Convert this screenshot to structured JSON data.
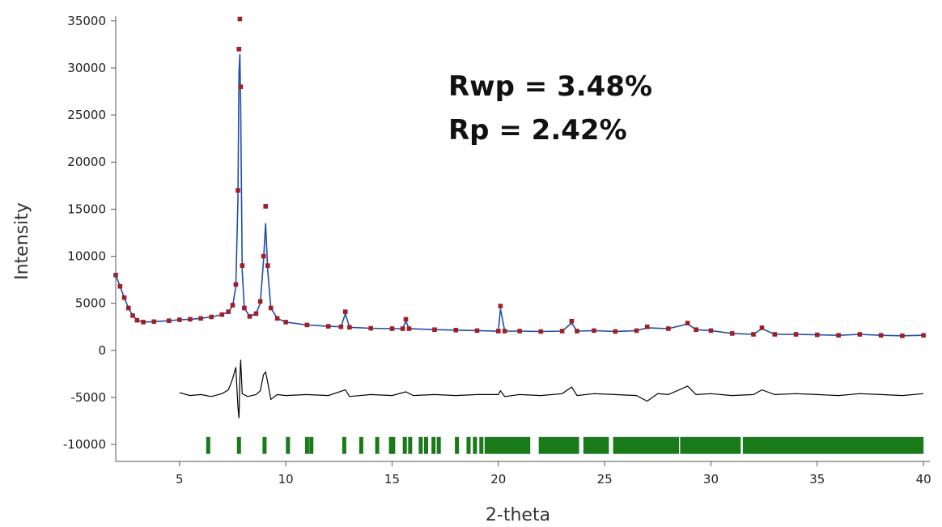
{
  "chart_data": {
    "type": "line",
    "title": "",
    "xlabel": "2-theta",
    "ylabel": "Intensity",
    "xlim": [
      2.0,
      40.3
    ],
    "ylim": [
      -11800,
      35500
    ],
    "grid": false,
    "legend": "none",
    "x_ticks": [
      5,
      10,
      15,
      20,
      25,
      30,
      35,
      40
    ],
    "y_ticks": [
      35000,
      30000,
      25000,
      20000,
      15000,
      10000,
      5000,
      0,
      -5000,
      -10000
    ],
    "x_tick_labels": [
      "5",
      "10",
      "15",
      "20",
      "25",
      "30",
      "35",
      "40"
    ],
    "y_tick_labels": [
      "35000",
      "30000",
      "25000",
      "20000",
      "15000",
      "10000",
      "5000",
      "0",
      "-5000",
      "-10000"
    ],
    "annotations": [
      "Rwp = 3.48%",
      "Rp = 2.42%"
    ],
    "colors": {
      "observed": "#a01e28",
      "calculated": "#1f4ea8",
      "difference": "#000000",
      "reflections": "#1a7a1a"
    },
    "observed": [
      [
        2.0,
        8000
      ],
      [
        2.2,
        6800
      ],
      [
        2.4,
        5600
      ],
      [
        2.6,
        4500
      ],
      [
        2.8,
        3700
      ],
      [
        3.0,
        3200
      ],
      [
        3.3,
        3000
      ],
      [
        3.8,
        3050
      ],
      [
        4.5,
        3150
      ],
      [
        5.0,
        3250
      ],
      [
        5.5,
        3300
      ],
      [
        6.0,
        3400
      ],
      [
        6.5,
        3550
      ],
      [
        7.0,
        3800
      ],
      [
        7.3,
        4100
      ],
      [
        7.5,
        4800
      ],
      [
        7.65,
        7000
      ],
      [
        7.75,
        17000
      ],
      [
        7.8,
        32000
      ],
      [
        7.84,
        35200
      ],
      [
        7.88,
        28000
      ],
      [
        7.95,
        9000
      ],
      [
        8.05,
        4500
      ],
      [
        8.3,
        3600
      ],
      [
        8.6,
        3900
      ],
      [
        8.8,
        5200
      ],
      [
        8.95,
        10000
      ],
      [
        9.05,
        15300
      ],
      [
        9.15,
        9000
      ],
      [
        9.3,
        4500
      ],
      [
        9.6,
        3400
      ],
      [
        10.0,
        3000
      ],
      [
        11.0,
        2700
      ],
      [
        12.0,
        2550
      ],
      [
        12.6,
        2500
      ],
      [
        12.8,
        4100
      ],
      [
        13.0,
        2450
      ],
      [
        14.0,
        2350
      ],
      [
        15.0,
        2300
      ],
      [
        15.5,
        2300
      ],
      [
        15.65,
        3300
      ],
      [
        15.8,
        2300
      ],
      [
        17.0,
        2200
      ],
      [
        18.0,
        2150
      ],
      [
        19.0,
        2100
      ],
      [
        20.0,
        2050
      ],
      [
        20.1,
        4700
      ],
      [
        20.3,
        2050
      ],
      [
        21.0,
        2050
      ],
      [
        22.0,
        2000
      ],
      [
        23.0,
        2050
      ],
      [
        23.45,
        3100
      ],
      [
        23.7,
        2050
      ],
      [
        24.5,
        2100
      ],
      [
        25.5,
        2000
      ],
      [
        26.5,
        2100
      ],
      [
        27.0,
        2500
      ],
      [
        28.0,
        2300
      ],
      [
        28.9,
        2900
      ],
      [
        29.3,
        2200
      ],
      [
        30.0,
        2100
      ],
      [
        31.0,
        1800
      ],
      [
        32.0,
        1700
      ],
      [
        32.4,
        2400
      ],
      [
        33.0,
        1700
      ],
      [
        34.0,
        1700
      ],
      [
        35.0,
        1650
      ],
      [
        36.0,
        1600
      ],
      [
        37.0,
        1700
      ],
      [
        38.0,
        1600
      ],
      [
        39.0,
        1550
      ],
      [
        40.0,
        1600
      ]
    ],
    "calculated": [
      [
        2.0,
        8000
      ],
      [
        2.2,
        6800
      ],
      [
        2.4,
        5600
      ],
      [
        2.6,
        4500
      ],
      [
        2.8,
        3700
      ],
      [
        3.0,
        3200
      ],
      [
        3.3,
        3000
      ],
      [
        3.8,
        3050
      ],
      [
        4.5,
        3150
      ],
      [
        5.0,
        3250
      ],
      [
        5.5,
        3300
      ],
      [
        6.0,
        3400
      ],
      [
        6.5,
        3550
      ],
      [
        7.0,
        3800
      ],
      [
        7.3,
        4100
      ],
      [
        7.5,
        4700
      ],
      [
        7.65,
        6800
      ],
      [
        7.75,
        16000
      ],
      [
        7.8,
        29500
      ],
      [
        7.84,
        31500
      ],
      [
        7.88,
        26000
      ],
      [
        7.95,
        8500
      ],
      [
        8.05,
        4500
      ],
      [
        8.3,
        3600
      ],
      [
        8.6,
        3900
      ],
      [
        8.8,
        5000
      ],
      [
        8.95,
        9500
      ],
      [
        9.05,
        13500
      ],
      [
        9.15,
        8500
      ],
      [
        9.3,
        4500
      ],
      [
        9.6,
        3400
      ],
      [
        10.0,
        3000
      ],
      [
        11.0,
        2700
      ],
      [
        12.0,
        2550
      ],
      [
        12.6,
        2500
      ],
      [
        12.8,
        3900
      ],
      [
        13.0,
        2450
      ],
      [
        14.0,
        2350
      ],
      [
        15.0,
        2300
      ],
      [
        15.5,
        2300
      ],
      [
        15.65,
        3100
      ],
      [
        15.8,
        2300
      ],
      [
        17.0,
        2200
      ],
      [
        18.0,
        2150
      ],
      [
        19.0,
        2100
      ],
      [
        20.0,
        2050
      ],
      [
        20.1,
        4400
      ],
      [
        20.3,
        2050
      ],
      [
        21.0,
        2050
      ],
      [
        22.0,
        2000
      ],
      [
        23.0,
        2050
      ],
      [
        23.45,
        2900
      ],
      [
        23.7,
        2050
      ],
      [
        24.5,
        2100
      ],
      [
        25.5,
        2000
      ],
      [
        26.5,
        2100
      ],
      [
        27.0,
        2400
      ],
      [
        28.0,
        2300
      ],
      [
        28.9,
        2800
      ],
      [
        29.3,
        2200
      ],
      [
        30.0,
        2100
      ],
      [
        31.0,
        1800
      ],
      [
        32.0,
        1700
      ],
      [
        32.4,
        2300
      ],
      [
        33.0,
        1700
      ],
      [
        34.0,
        1700
      ],
      [
        35.0,
        1650
      ],
      [
        36.0,
        1600
      ],
      [
        37.0,
        1700
      ],
      [
        38.0,
        1600
      ],
      [
        39.0,
        1550
      ],
      [
        40.0,
        1600
      ]
    ],
    "difference": [
      [
        5.0,
        -4500
      ],
      [
        5.5,
        -4800
      ],
      [
        6.0,
        -4700
      ],
      [
        6.5,
        -4900
      ],
      [
        7.0,
        -4600
      ],
      [
        7.3,
        -4200
      ],
      [
        7.5,
        -3000
      ],
      [
        7.65,
        -1800
      ],
      [
        7.75,
        -6000
      ],
      [
        7.8,
        -7200
      ],
      [
        7.84,
        -3000
      ],
      [
        7.88,
        -1000
      ],
      [
        7.95,
        -4600
      ],
      [
        8.2,
        -4900
      ],
      [
        8.6,
        -4700
      ],
      [
        8.8,
        -4300
      ],
      [
        8.95,
        -2600
      ],
      [
        9.05,
        -2300
      ],
      [
        9.15,
        -3400
      ],
      [
        9.3,
        -5200
      ],
      [
        9.6,
        -4700
      ],
      [
        10.0,
        -4800
      ],
      [
        11.0,
        -4700
      ],
      [
        12.0,
        -4800
      ],
      [
        12.8,
        -4200
      ],
      [
        13.0,
        -4900
      ],
      [
        14.0,
        -4700
      ],
      [
        15.0,
        -4800
      ],
      [
        15.65,
        -4400
      ],
      [
        16.0,
        -4800
      ],
      [
        17.0,
        -4700
      ],
      [
        18.0,
        -4800
      ],
      [
        19.0,
        -4700
      ],
      [
        20.0,
        -4700
      ],
      [
        20.1,
        -4300
      ],
      [
        20.3,
        -4900
      ],
      [
        21.0,
        -4700
      ],
      [
        22.0,
        -4800
      ],
      [
        23.0,
        -4600
      ],
      [
        23.45,
        -3900
      ],
      [
        23.7,
        -4800
      ],
      [
        24.5,
        -4600
      ],
      [
        25.5,
        -4700
      ],
      [
        26.5,
        -4800
      ],
      [
        27.0,
        -5400
      ],
      [
        27.5,
        -4600
      ],
      [
        28.0,
        -4700
      ],
      [
        28.9,
        -3800
      ],
      [
        29.3,
        -4700
      ],
      [
        30.0,
        -4600
      ],
      [
        31.0,
        -4800
      ],
      [
        32.0,
        -4700
      ],
      [
        32.4,
        -4200
      ],
      [
        33.0,
        -4700
      ],
      [
        34.0,
        -4600
      ],
      [
        35.0,
        -4700
      ],
      [
        36.0,
        -4800
      ],
      [
        37.0,
        -4600
      ],
      [
        38.0,
        -4700
      ],
      [
        39.0,
        -4800
      ],
      [
        40.0,
        -4600
      ]
    ],
    "reflection_ticks": {
      "y_range": [
        -11000,
        -9200
      ],
      "singles": [
        6.35,
        7.8,
        9.0,
        10.1,
        11.0,
        11.2,
        12.75,
        13.55,
        14.3,
        14.95,
        15.05,
        15.6,
        15.85,
        16.35,
        16.6,
        16.95,
        17.2,
        18.05,
        18.6,
        18.9,
        19.2,
        19.45
      ],
      "bands": [
        [
          19.5,
          21.5
        ],
        [
          21.9,
          23.8
        ],
        [
          24.0,
          25.2
        ],
        [
          25.4,
          28.5
        ],
        [
          28.55,
          31.4
        ],
        [
          31.5,
          40.0
        ]
      ]
    }
  }
}
